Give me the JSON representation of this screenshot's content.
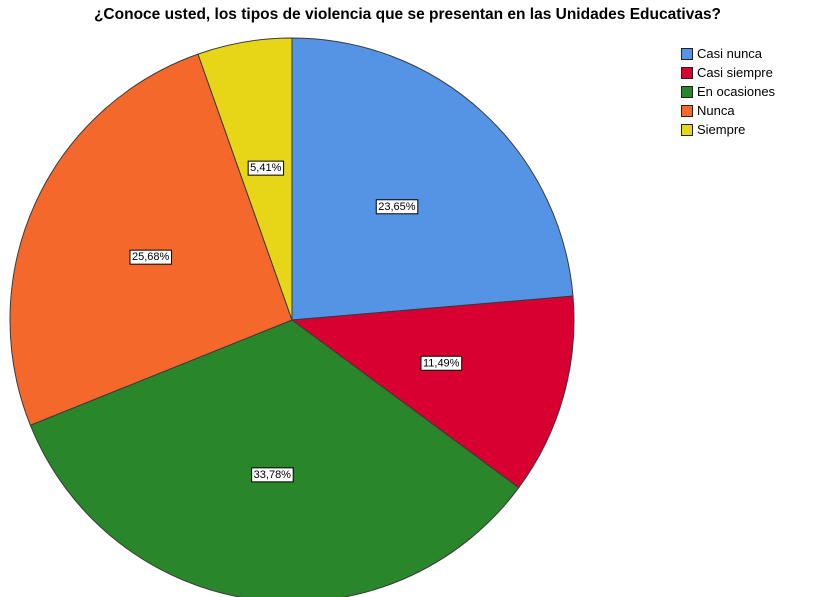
{
  "chart_data": {
    "type": "pie",
    "title": "¿Conoce usted, los tipos de violencia que se presentan en las Unidades Educativas?",
    "legend_position": "top-right",
    "slices": [
      {
        "label": "Casi nunca",
        "value": 23.65,
        "display": "23,65%",
        "color": "#5594e4"
      },
      {
        "label": "Casi siempre",
        "value": 11.49,
        "display": "11,49%",
        "color": "#d80030"
      },
      {
        "label": "En ocasiones",
        "value": 33.78,
        "display": "33,78%",
        "color": "#2a862a"
      },
      {
        "label": "Nunca",
        "value": 25.68,
        "display": "25,68%",
        "color": "#f4692b"
      },
      {
        "label": "Siempre",
        "value": 5.41,
        "display": "5,41%",
        "color": "#e6d617"
      }
    ]
  }
}
